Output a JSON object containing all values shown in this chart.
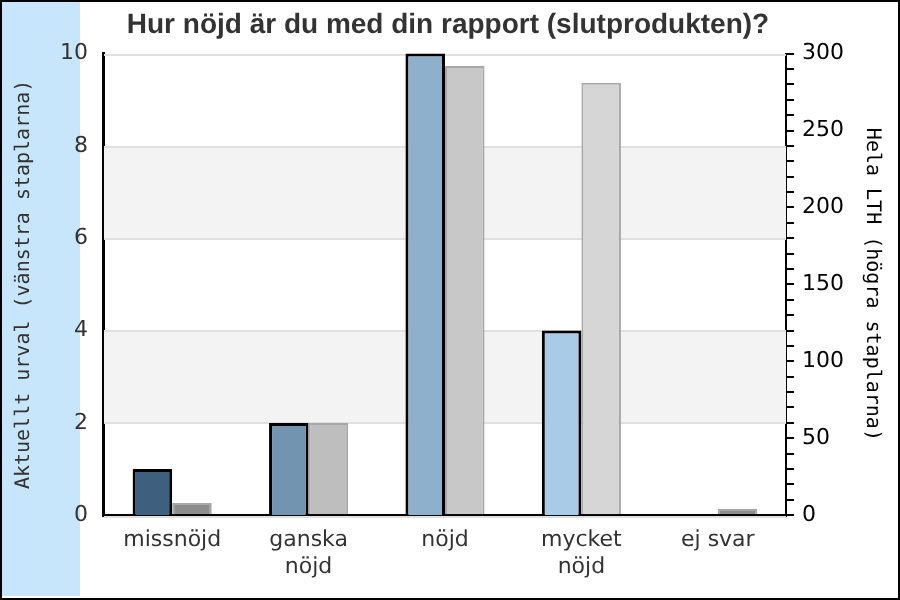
{
  "chart_data": {
    "type": "bar",
    "title": "Hur nöjd är du med din rapport (slutprodukten)?",
    "categories": [
      "missnöjd",
      "ganska\nnöjd",
      "nöjd",
      "mycket\nnöjd",
      "ej svar"
    ],
    "series": [
      {
        "colors": [
          "#3e5f7e",
          "#7394b0",
          "#8fb0cc",
          "#a9cbe6",
          "#a9cbe6"
        ],
        "values": [
          1,
          2,
          10,
          4,
          0
        ]
      },
      {
        "colors": [
          "#8c8c8c",
          "#bebebe",
          "#c8c8c8",
          "#d6d6d6",
          "#8c8c8c"
        ],
        "values": [
          8,
          60,
          292,
          281,
          4
        ],
        "axis": "y2"
      }
    ],
    "ylabel": "Aktuellt urval (vänstra staplarna)",
    "y2label": "Hela LTH (högra staplarna)",
    "ylim": [
      0,
      10
    ],
    "yticks": [
      0,
      2,
      4,
      6,
      8,
      10
    ],
    "y2lim": [
      0,
      300
    ],
    "y2ticks": [
      0,
      {
        "value": 10,
        "label": null
      },
      {
        "value": 20,
        "label": null
      },
      {
        "value": 30,
        "label": null
      },
      {
        "value": 40,
        "label": null
      },
      50,
      {
        "value": 60,
        "label": null
      },
      {
        "value": 70,
        "label": null
      },
      {
        "value": 80,
        "label": null
      },
      {
        "value": 90,
        "label": null
      },
      100,
      {
        "value": 110,
        "label": null
      },
      {
        "value": 120,
        "label": null
      },
      {
        "value": 130,
        "label": null
      },
      {
        "value": 140,
        "label": null
      },
      150,
      {
        "value": 160,
        "label": null
      },
      {
        "value": 170,
        "label": null
      },
      {
        "value": 180,
        "label": null
      },
      {
        "value": 190,
        "label": null
      },
      200,
      {
        "value": 210,
        "label": null
      },
      {
        "value": 220,
        "label": null
      },
      {
        "value": 230,
        "label": null
      },
      {
        "value": 240,
        "label": null
      },
      250,
      {
        "value": 260,
        "label": null
      },
      {
        "value": 270,
        "label": null
      },
      {
        "value": 280,
        "label": null
      },
      {
        "value": 290,
        "label": null
      },
      300
    ],
    "grid": "y",
    "legend": false
  }
}
